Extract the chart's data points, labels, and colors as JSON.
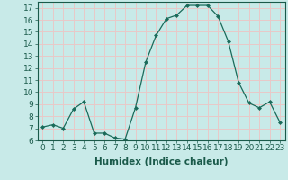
{
  "x": [
    0,
    1,
    2,
    3,
    4,
    5,
    6,
    7,
    8,
    9,
    10,
    11,
    12,
    13,
    14,
    15,
    16,
    17,
    18,
    19,
    20,
    21,
    22,
    23
  ],
  "y": [
    7.1,
    7.3,
    7.0,
    8.6,
    9.2,
    6.6,
    6.6,
    6.2,
    6.1,
    8.7,
    12.5,
    14.7,
    16.1,
    16.4,
    17.2,
    17.2,
    17.2,
    16.3,
    14.2,
    10.8,
    9.1,
    8.7,
    9.2,
    7.5
  ],
  "line_color": "#1a6b5a",
  "marker_color": "#1a6b5a",
  "bg_color": "#c8eae8",
  "grid_color": "#e8c8c8",
  "xlabel": "Humidex (Indice chaleur)",
  "ylim": [
    6,
    17.5
  ],
  "xlim": [
    -0.5,
    23.5
  ],
  "yticks": [
    6,
    7,
    8,
    9,
    10,
    11,
    12,
    13,
    14,
    15,
    16,
    17
  ],
  "xticks": [
    0,
    1,
    2,
    3,
    4,
    5,
    6,
    7,
    8,
    9,
    10,
    11,
    12,
    13,
    14,
    15,
    16,
    17,
    18,
    19,
    20,
    21,
    22,
    23
  ],
  "tick_fontsize": 6.5,
  "xlabel_fontsize": 7.5,
  "tick_color": "#1a5a4a"
}
